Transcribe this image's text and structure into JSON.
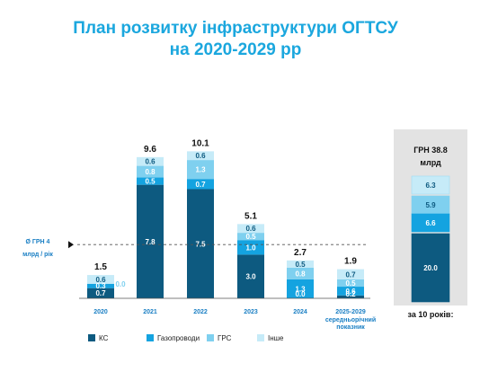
{
  "chart_data": {
    "type": "bar",
    "stacked": true,
    "title_lines": [
      "План розвитку інфраструктури ОГТСУ",
      "на 2020-2029 рр"
    ],
    "categories": [
      "2020",
      "2021",
      "2022",
      "2023",
      "2024",
      "2025-2029"
    ],
    "category_sublabel": {
      "index": 5,
      "lines": [
        "середньорічний",
        "показник"
      ]
    },
    "totals": [
      "1.5",
      "9.6",
      "10.1",
      "5.1",
      "2.7",
      "1.9"
    ],
    "series": [
      {
        "name": "КС",
        "color": "#0d5a80",
        "values": [
          0.7,
          7.8,
          7.5,
          3.0,
          0.0,
          0.2
        ],
        "labels": [
          "0.7",
          "7.8",
          "7.5",
          "3.0",
          "0.0",
          "0.2"
        ]
      },
      {
        "name": "Газопроводи",
        "color": "#14a3e0",
        "values": [
          0.3,
          0.5,
          0.7,
          1.0,
          1.3,
          0.6
        ],
        "labels": [
          "0.3",
          "0.5",
          "0.7",
          "1.0",
          "1.3",
          "0.6"
        ]
      },
      {
        "name": "ГРС",
        "color": "#7fd0ef",
        "values": [
          0.0,
          0.8,
          1.3,
          0.5,
          0.8,
          0.5
        ],
        "labels": [
          "0.0",
          "0.8",
          "1.3",
          "0.5",
          "0.8",
          "0.5"
        ]
      },
      {
        "name": "Інше",
        "color": "#c6ebf8",
        "values": [
          0.6,
          0.6,
          0.6,
          0.6,
          0.5,
          0.7
        ],
        "labels": [
          "0.6",
          "0.6",
          "0.6",
          "0.6",
          "0.5",
          "0.7"
        ]
      }
    ],
    "reference_line": {
      "value": 4,
      "label_lines": [
        "Ø  ГРН  4",
        "млрд / рік"
      ]
    },
    "legend_position": "bottom",
    "grid": false,
    "side_panel": {
      "title_lines": [
        "ГРН 38.8",
        "млрд"
      ],
      "values": [
        {
          "series": "КС",
          "value": 20.0,
          "label": "20.0"
        },
        {
          "series": "Газопроводи",
          "value": 6.6,
          "label": "6.6"
        },
        {
          "series": "ГРС",
          "value": 5.9,
          "label": "5.9"
        },
        {
          "series": "Інше",
          "value": 6.3,
          "label": "6.3"
        }
      ],
      "caption": "за 10 років:"
    }
  }
}
